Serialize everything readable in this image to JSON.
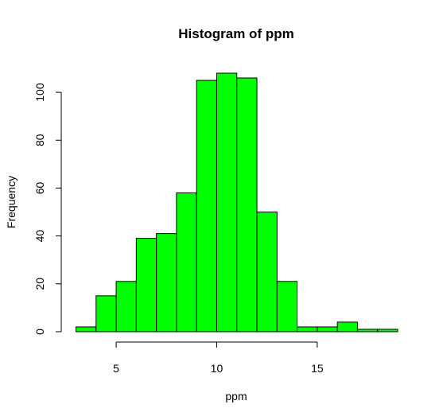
{
  "chart_data": {
    "type": "bar",
    "title": "Histogram of ppm",
    "xlabel": "ppm",
    "ylabel": "Frequency",
    "bins": [
      {
        "x0": 3,
        "x1": 4,
        "count": 2
      },
      {
        "x0": 4,
        "x1": 5,
        "count": 15
      },
      {
        "x0": 5,
        "x1": 6,
        "count": 21
      },
      {
        "x0": 6,
        "x1": 7,
        "count": 39
      },
      {
        "x0": 7,
        "x1": 8,
        "count": 41
      },
      {
        "x0": 8,
        "x1": 9,
        "count": 58
      },
      {
        "x0": 9,
        "x1": 10,
        "count": 105
      },
      {
        "x0": 10,
        "x1": 11,
        "count": 108
      },
      {
        "x0": 11,
        "x1": 12,
        "count": 106
      },
      {
        "x0": 12,
        "x1": 13,
        "count": 50
      },
      {
        "x0": 13,
        "x1": 14,
        "count": 21
      },
      {
        "x0": 14,
        "x1": 15,
        "count": 2
      },
      {
        "x0": 15,
        "x1": 16,
        "count": 2
      },
      {
        "x0": 16,
        "x1": 17,
        "count": 4
      },
      {
        "x0": 17,
        "x1": 18,
        "count": 1
      },
      {
        "x0": 18,
        "x1": 19,
        "count": 1
      }
    ],
    "xlim": [
      3,
      19
    ],
    "ylim": [
      0,
      108
    ],
    "x_ticks": [
      5,
      10,
      15
    ],
    "y_ticks": [
      0,
      20,
      40,
      60,
      80,
      100
    ],
    "bar_color": "#00ff00",
    "bar_border_color": "#000000",
    "grid": false,
    "legend": "none"
  }
}
